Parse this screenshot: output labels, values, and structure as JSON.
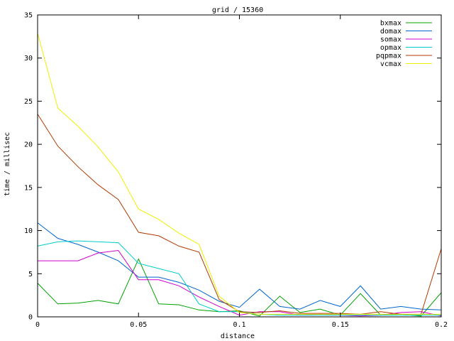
{
  "chart_data": {
    "type": "line",
    "title": "grid / 15360",
    "xlabel": "distance",
    "ylabel": "time / millisec",
    "xlim": [
      0,
      0.2
    ],
    "ylim": [
      0,
      35
    ],
    "grid": false,
    "legend_position": "top-right",
    "x_ticks": [
      {
        "value": 0,
        "label": "0"
      },
      {
        "value": 0.05,
        "label": "0.05"
      },
      {
        "value": 0.1,
        "label": "0.1"
      },
      {
        "value": 0.15,
        "label": "0.15"
      },
      {
        "value": 0.2,
        "label": "0.2"
      }
    ],
    "y_ticks": [
      {
        "value": 0,
        "label": "0"
      },
      {
        "value": 5,
        "label": "5"
      },
      {
        "value": 10,
        "label": "10"
      },
      {
        "value": 15,
        "label": "15"
      },
      {
        "value": 20,
        "label": "20"
      },
      {
        "value": 25,
        "label": "25"
      },
      {
        "value": 30,
        "label": "30"
      },
      {
        "value": 35,
        "label": "35"
      }
    ],
    "x": [
      0,
      0.01,
      0.02,
      0.03,
      0.04,
      0.05,
      0.06,
      0.07,
      0.08,
      0.09,
      0.1,
      0.11,
      0.12,
      0.13,
      0.14,
      0.15,
      0.16,
      0.17,
      0.18,
      0.19,
      0.2
    ],
    "series": [
      {
        "name": "bxmax",
        "color": "#00a000",
        "values": [
          3.9,
          1.5,
          1.6,
          1.9,
          1.5,
          6.7,
          1.5,
          1.4,
          0.8,
          0.6,
          0.7,
          0.1,
          2.4,
          0.5,
          0.9,
          0.2,
          2.7,
          0.2,
          0.3,
          0.1,
          2.8
        ]
      },
      {
        "name": "domax",
        "color": "#0066cc",
        "values": [
          10.9,
          9.1,
          8.4,
          7.5,
          6.5,
          4.6,
          4.6,
          4.0,
          3.1,
          1.8,
          1.1,
          3.2,
          1.2,
          0.9,
          1.9,
          1.2,
          3.6,
          0.9,
          1.2,
          0.9,
          0.8
        ]
      },
      {
        "name": "somax",
        "color": "#cc00cc",
        "values": [
          6.5,
          6.5,
          6.5,
          7.4,
          7.7,
          4.3,
          4.3,
          3.6,
          2.3,
          1.2,
          0.2,
          0.6,
          0.6,
          0.2,
          0.3,
          0.2,
          0.1,
          0.2,
          0.5,
          0.6,
          0.1
        ]
      },
      {
        "name": "opmax",
        "color": "#00cccc",
        "values": [
          8.2,
          8.7,
          8.8,
          8.7,
          8.6,
          6.2,
          5.6,
          5.0,
          1.5,
          0.6,
          0.6,
          0.3,
          0.2,
          0.2,
          0.2,
          0.2,
          0.2,
          0.2,
          0.2,
          0.2,
          0.2
        ]
      },
      {
        "name": "pqpmax",
        "color": "#b23a00",
        "values": [
          23.5,
          19.8,
          17.4,
          15.3,
          13.6,
          9.8,
          9.4,
          8.2,
          7.5,
          2.0,
          0.6,
          0.5,
          0.7,
          0.4,
          0.4,
          0.4,
          0.3,
          0.6,
          0.3,
          0.3,
          7.9
        ]
      },
      {
        "name": "vcmax",
        "color": "#eeee00",
        "values": [
          32.9,
          24.2,
          22.1,
          19.7,
          16.8,
          12.5,
          11.3,
          9.7,
          8.4,
          2.4,
          0.5,
          0.3,
          0.3,
          0.3,
          0.3,
          0.3,
          0.3,
          0.3,
          0.3,
          0.3,
          0.3
        ]
      }
    ]
  }
}
